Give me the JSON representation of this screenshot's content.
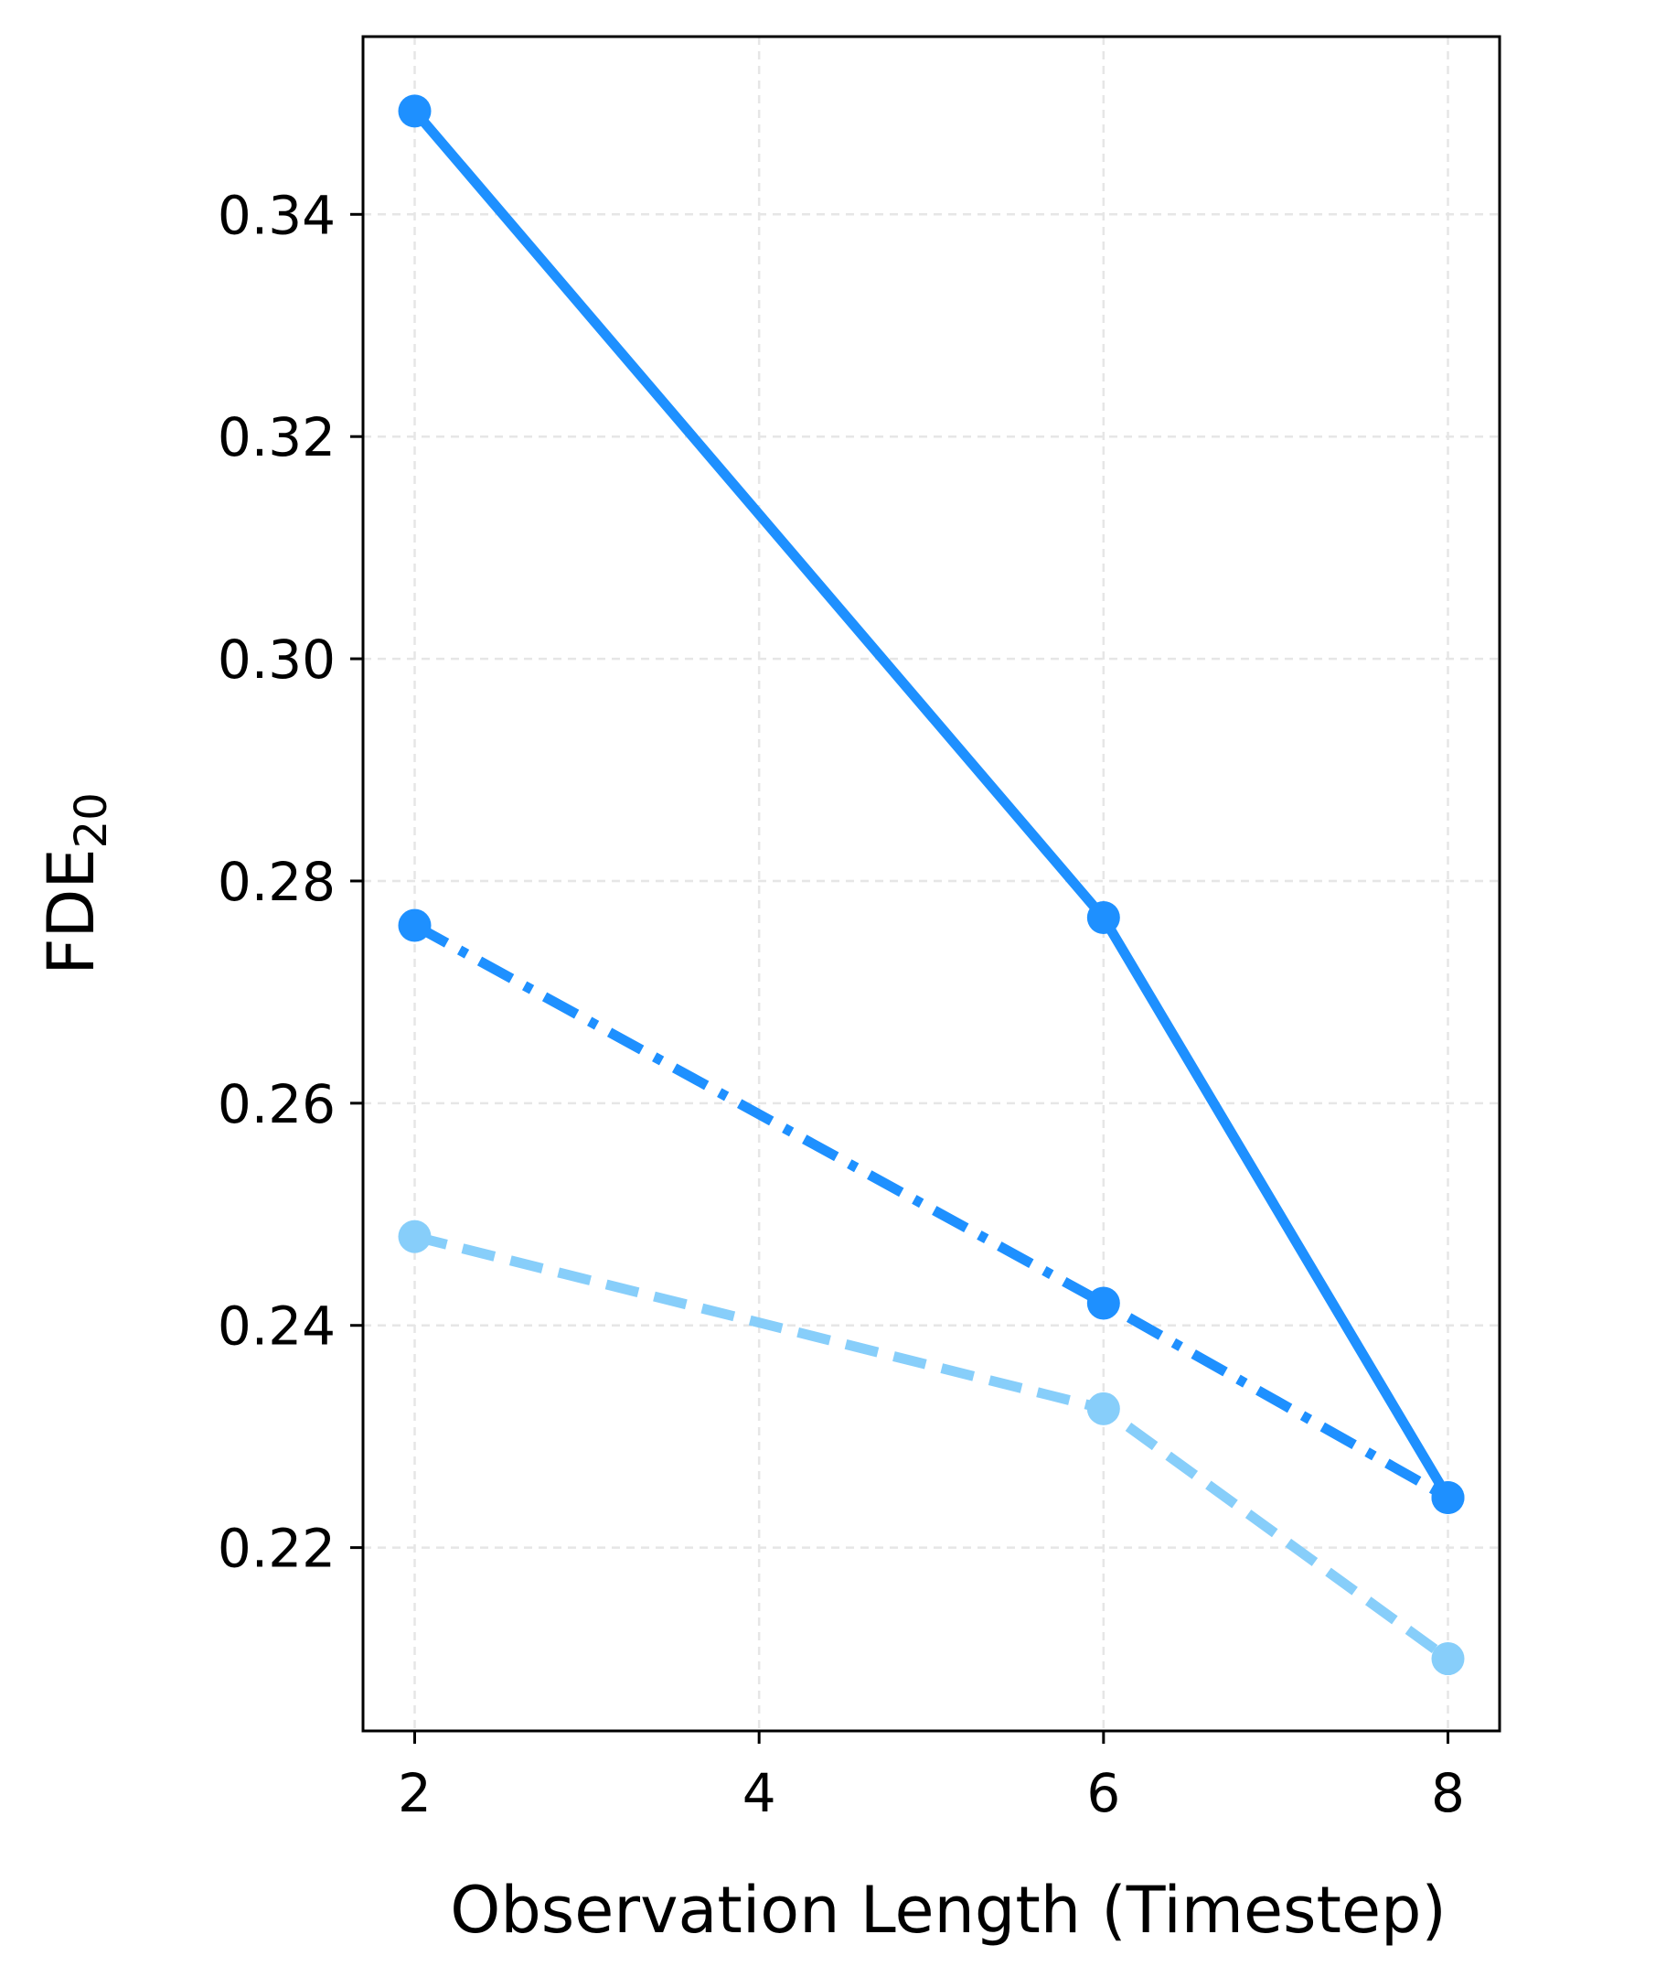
{
  "chart_data": {
    "type": "line",
    "title": "",
    "xlabel": "Observation Length (Timestep)",
    "ylabel": {
      "main": "FDE",
      "subscript": "20"
    },
    "x": [
      2,
      6,
      8
    ],
    "xticks": [
      2,
      4,
      6,
      8
    ],
    "xtick_labels": [
      "2",
      "4",
      "6",
      "8"
    ],
    "yticks": [
      0.22,
      0.24,
      0.26,
      0.28,
      0.3,
      0.32,
      0.34
    ],
    "ytick_labels": [
      "0.22",
      "0.24",
      "0.26",
      "0.28",
      "0.30",
      "0.32",
      "0.34"
    ],
    "xlim": [
      1.7,
      8.3
    ],
    "ylim": [
      0.2035,
      0.356
    ],
    "grid": true,
    "legend": null,
    "series": [
      {
        "values": [
          0.3493,
          0.2767,
          0.2245
        ],
        "color": "#1e90ff",
        "style": "solid"
      },
      {
        "values": [
          0.276,
          0.242,
          0.2245
        ],
        "color": "#1e90ff",
        "style": "dashdot"
      },
      {
        "values": [
          0.248,
          0.2325,
          0.21
        ],
        "color": "#87cefa",
        "style": "dashed"
      }
    ]
  }
}
